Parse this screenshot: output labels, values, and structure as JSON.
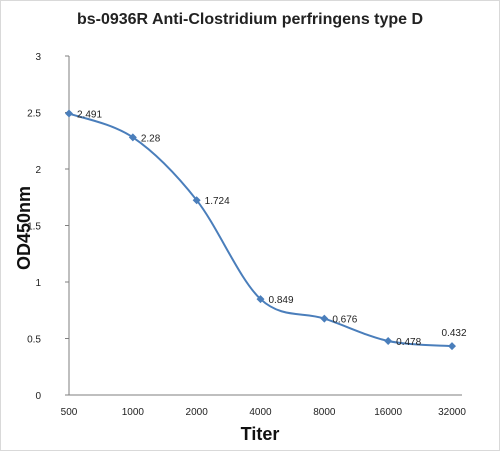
{
  "chart_data": {
    "type": "line",
    "title": "bs-0936R  Anti-Clostridium  perfringens type D",
    "xlabel": "Titer",
    "ylabel": "OD450nm",
    "categories": [
      "500",
      "1000",
      "2000",
      "4000",
      "8000",
      "16000",
      "32000"
    ],
    "values": [
      2.491,
      2.28,
      1.724,
      0.849,
      0.676,
      0.478,
      0.432
    ],
    "data_labels": [
      "2.491",
      "2.28",
      "1.724",
      "0.849",
      "0.676",
      "0.478",
      "0.432"
    ],
    "y_ticks": [
      "0",
      "0.5",
      "1",
      "1.5",
      "2",
      "2.5",
      "3"
    ],
    "ylim": [
      0,
      3
    ],
    "grid": false,
    "legend": "none",
    "colors": {
      "series": "#4a7ebb",
      "axis": "#7f7f7f",
      "text": "#222222"
    }
  }
}
